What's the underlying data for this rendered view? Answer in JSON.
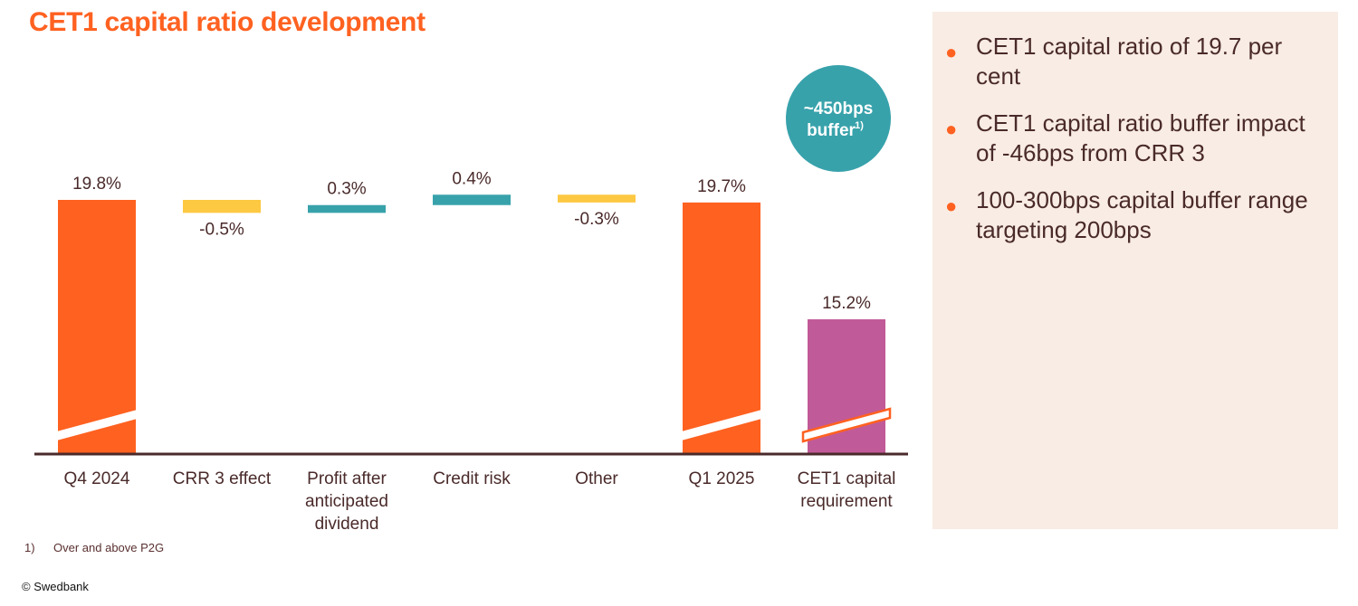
{
  "title": "CET1 capital ratio development",
  "bullets": [
    "CET1 capital ratio of 19.7 per cent",
    "CET1 capital ratio buffer impact of -46bps from CRR 3",
    "100-300bps capital buffer range targeting 200bps"
  ],
  "footnote": {
    "number": "1)",
    "text": "Over and above P2G"
  },
  "copyright": "© Swedbank",
  "colors": {
    "orange": "#ff6120",
    "yellow": "#fdc842",
    "teal": "#38a2ab",
    "purple": "#c15a98",
    "text": "#4a2a2a",
    "panel": "#f8ece4"
  },
  "chart_data": {
    "type": "bar",
    "subtype": "waterfall",
    "title": "CET1 capital ratio development",
    "categories": [
      "Q4 2024",
      "CRR 3 effect",
      "Profit after anticipated dividend",
      "Credit risk",
      "Other",
      "Q1 2025",
      "CET1 capital requirement"
    ],
    "category_lines": [
      [
        "Q4 2024"
      ],
      [
        "CRR 3 effect"
      ],
      [
        "Profit after",
        "anticipated",
        "dividend"
      ],
      [
        "Credit risk"
      ],
      [
        "Other"
      ],
      [
        "Q1 2025"
      ],
      [
        "CET1 capital",
        "requirement"
      ]
    ],
    "values": [
      19.8,
      -0.5,
      0.3,
      0.4,
      -0.3,
      19.7,
      15.2
    ],
    "labels": [
      "19.8%",
      "-0.5%",
      "0.3%",
      "0.4%",
      "-0.3%",
      "19.7%",
      "15.2%"
    ],
    "kinds": [
      "total",
      "delta",
      "delta",
      "delta",
      "delta",
      "total",
      "total"
    ],
    "bar_colors": [
      "#ff6120",
      "#fdc842",
      "#38a2ab",
      "#38a2ab",
      "#fdc842",
      "#ff6120",
      "#c15a98"
    ],
    "axis_break": true,
    "annotation": {
      "line1": "~450bps",
      "line2": "buffer",
      "superscript": "1)"
    },
    "unit": "%"
  }
}
